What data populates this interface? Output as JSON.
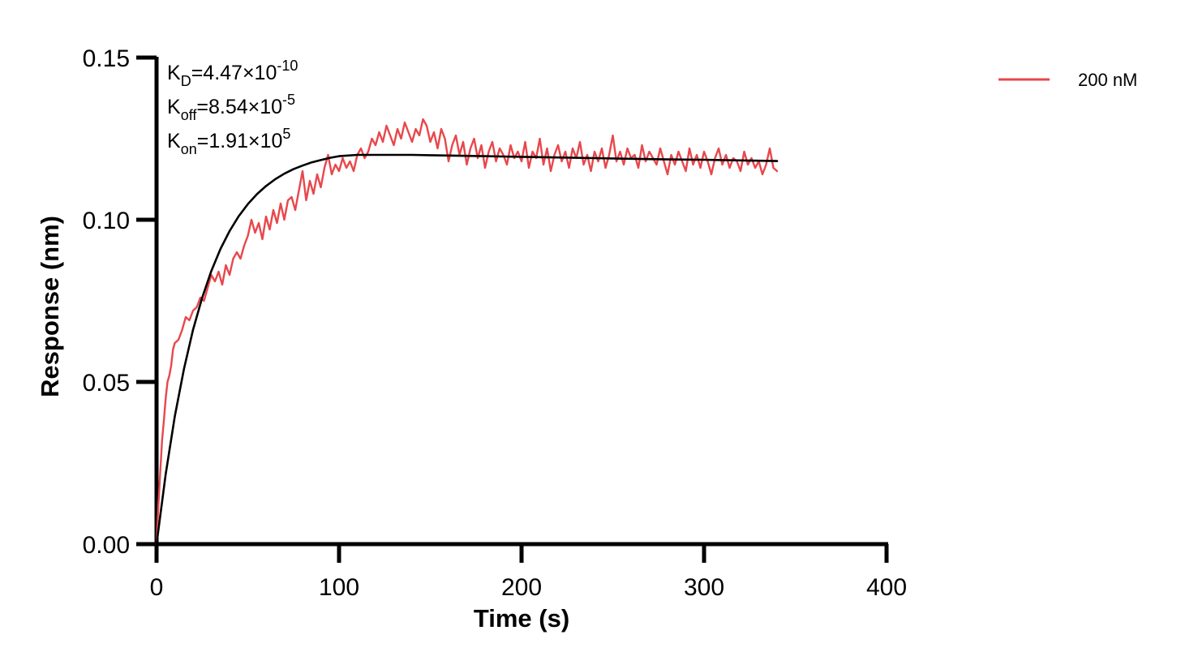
{
  "chart_data": {
    "type": "line",
    "title": "",
    "xlabel": "Time (s)",
    "ylabel": "Response (nm)",
    "xlim": [
      0,
      400
    ],
    "ylim": [
      0,
      0.15
    ],
    "x_ticks": [
      "0",
      "100",
      "200",
      "300",
      "400"
    ],
    "y_ticks": [
      "0.00",
      "0.05",
      "0.10",
      "0.15"
    ],
    "grid": false,
    "legend_position": "top-right",
    "annotations": [
      {
        "name": "K",
        "sub": "D",
        "value": "=4.47×10",
        "exp": "-10"
      },
      {
        "name": "K",
        "sub": "off",
        "value": "=8.54×10",
        "exp": "-5"
      },
      {
        "name": "K",
        "sub": "on",
        "value": "=1.91×10",
        "exp": "5"
      }
    ],
    "series": [
      {
        "name": "200 nM",
        "role": "measured",
        "color": "#e8474c",
        "x": [
          0,
          1,
          2,
          3,
          4,
          5,
          6,
          7,
          8,
          9,
          10,
          12,
          14,
          16,
          18,
          20,
          22,
          24,
          26,
          28,
          30,
          32,
          34,
          36,
          38,
          40,
          42,
          44,
          46,
          48,
          50,
          52,
          54,
          56,
          58,
          60,
          62,
          64,
          66,
          68,
          70,
          72,
          74,
          76,
          78,
          80,
          82,
          84,
          86,
          88,
          90,
          92,
          94,
          96,
          98,
          100,
          102,
          104,
          106,
          108,
          110,
          112,
          114,
          116,
          118,
          120,
          122,
          124,
          126,
          128,
          130,
          132,
          134,
          136,
          138,
          140,
          142,
          144,
          146,
          148,
          150,
          152,
          154,
          156,
          158,
          160,
          162,
          164,
          166,
          168,
          170,
          172,
          174,
          176,
          178,
          180,
          182,
          184,
          186,
          188,
          190,
          192,
          194,
          196,
          198,
          200,
          202,
          204,
          206,
          208,
          210,
          212,
          214,
          216,
          218,
          220,
          222,
          224,
          226,
          228,
          230,
          232,
          234,
          236,
          238,
          240,
          242,
          244,
          246,
          248,
          250,
          252,
          254,
          256,
          258,
          260,
          262,
          264,
          266,
          268,
          270,
          272,
          274,
          276,
          278,
          280,
          282,
          284,
          286,
          288,
          290,
          292,
          294,
          296,
          298,
          300,
          302,
          304,
          306,
          308,
          310,
          312,
          314,
          316,
          318,
          320,
          322,
          324,
          326,
          328,
          330,
          332,
          334,
          336,
          338,
          340
        ],
        "y": [
          0.0,
          0.012,
          0.022,
          0.032,
          0.038,
          0.045,
          0.05,
          0.052,
          0.055,
          0.06,
          0.062,
          0.063,
          0.066,
          0.07,
          0.069,
          0.072,
          0.073,
          0.076,
          0.075,
          0.079,
          0.083,
          0.081,
          0.084,
          0.08,
          0.086,
          0.083,
          0.088,
          0.09,
          0.088,
          0.092,
          0.095,
          0.1,
          0.096,
          0.099,
          0.094,
          0.101,
          0.097,
          0.103,
          0.099,
          0.105,
          0.1,
          0.106,
          0.107,
          0.103,
          0.109,
          0.115,
          0.106,
          0.112,
          0.108,
          0.114,
          0.11,
          0.116,
          0.12,
          0.114,
          0.117,
          0.115,
          0.119,
          0.116,
          0.118,
          0.115,
          0.12,
          0.122,
          0.119,
          0.121,
          0.125,
          0.123,
          0.127,
          0.124,
          0.129,
          0.126,
          0.123,
          0.128,
          0.125,
          0.13,
          0.127,
          0.124,
          0.128,
          0.126,
          0.131,
          0.129,
          0.124,
          0.127,
          0.122,
          0.128,
          0.125,
          0.118,
          0.123,
          0.126,
          0.12,
          0.124,
          0.117,
          0.122,
          0.125,
          0.119,
          0.123,
          0.116,
          0.121,
          0.124,
          0.118,
          0.122,
          0.12,
          0.117,
          0.123,
          0.119,
          0.121,
          0.118,
          0.124,
          0.116,
          0.121,
          0.119,
          0.125,
          0.117,
          0.122,
          0.115,
          0.12,
          0.123,
          0.118,
          0.121,
          0.116,
          0.122,
          0.119,
          0.124,
          0.117,
          0.12,
          0.115,
          0.121,
          0.118,
          0.122,
          0.116,
          0.12,
          0.126,
          0.118,
          0.121,
          0.117,
          0.122,
          0.119,
          0.12,
          0.116,
          0.123,
          0.118,
          0.121,
          0.119,
          0.117,
          0.122,
          0.118,
          0.114,
          0.12,
          0.117,
          0.121,
          0.118,
          0.115,
          0.122,
          0.117,
          0.12,
          0.116,
          0.121,
          0.118,
          0.114,
          0.119,
          0.122,
          0.117,
          0.12,
          0.116,
          0.119,
          0.118,
          0.115,
          0.121,
          0.117,
          0.119,
          0.116,
          0.118,
          0.114,
          0.117,
          0.122,
          0.116,
          0.115
        ]
      },
      {
        "name": "",
        "role": "fit",
        "color": "#000000",
        "x": [
          0,
          5,
          10,
          15,
          20,
          25,
          30,
          35,
          40,
          45,
          50,
          55,
          60,
          65,
          70,
          75,
          80,
          85,
          90,
          95,
          100,
          110,
          120,
          130,
          140,
          150,
          160,
          170,
          180,
          190,
          200,
          220,
          240,
          260,
          280,
          300,
          320,
          340
        ],
        "y": [
          0.0,
          0.0216,
          0.0394,
          0.054,
          0.0661,
          0.076,
          0.0842,
          0.091,
          0.0965,
          0.1011,
          0.1048,
          0.1079,
          0.1104,
          0.1125,
          0.1142,
          0.1156,
          0.1167,
          0.1177,
          0.1184,
          0.1191,
          0.1196,
          0.12,
          0.12,
          0.12,
          0.12,
          0.1199,
          0.1198,
          0.1197,
          0.1196,
          0.1195,
          0.1194,
          0.1192,
          0.119,
          0.1188,
          0.1186,
          0.1185,
          0.1183,
          0.1181
        ]
      }
    ]
  }
}
